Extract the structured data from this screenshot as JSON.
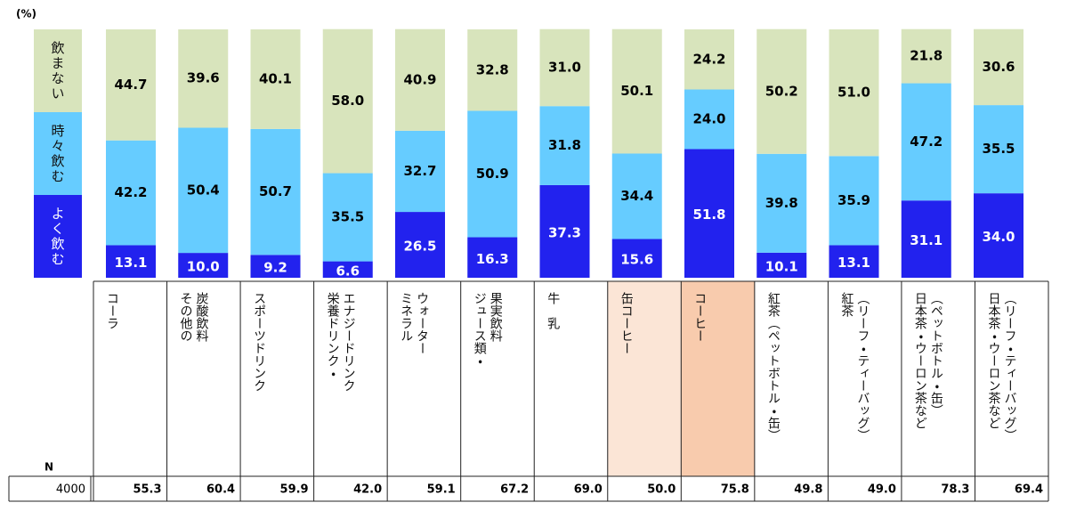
{
  "chart_data": {
    "type": "stacked_bar",
    "unit_label": "(%)",
    "ylim": [
      0,
      100
    ],
    "categories": [
      "コーラ",
      "その他の\n炭酸飲料",
      "スポーツドリンク",
      "栄養ドリンク・\nエナジードリンク",
      "ミネラル\nウォーター",
      "ジュース類・\n果実飲料",
      "牛　乳",
      "缶コーヒー",
      "コーヒー",
      "紅茶（ペットボトル・缶）",
      "紅茶\n（リーフ・ティーバッグ）",
      "日本茶・ウーロン茶など\n（ペットボトル・缶）",
      "日本茶・ウーロン茶など\n（リーフ・ティーバッグ）"
    ],
    "series": [
      {
        "name": "よく飲む",
        "color": "#2222ee",
        "label_color": "#ffffff",
        "values": [
          13.1,
          10.0,
          9.2,
          6.6,
          26.5,
          16.3,
          37.3,
          15.6,
          51.8,
          10.1,
          13.1,
          31.1,
          34.0
        ],
        "value_labels": [
          "13.1",
          "10.0",
          "9.2",
          "6.6",
          "26.5",
          "16.3",
          "37.3",
          "15.6",
          "51.8",
          "10.1",
          "13.1",
          "31.1",
          "34.0"
        ]
      },
      {
        "name": "時々飲む",
        "color": "#66ccff",
        "label_color": "#000000",
        "values": [
          42.2,
          50.4,
          50.7,
          35.5,
          32.7,
          50.9,
          31.8,
          34.4,
          24.0,
          39.8,
          35.9,
          47.2,
          35.5
        ],
        "value_labels": [
          "42.2",
          "50.4",
          "50.7",
          "35.5",
          "32.7",
          "50.9",
          "31.8",
          "34.4",
          "24.0",
          "39.8",
          "35.9",
          "47.2",
          "35.5"
        ]
      },
      {
        "name": "飲まない",
        "color": "#d8e4bc",
        "label_color": "#000000",
        "values": [
          44.7,
          39.6,
          40.1,
          58.0,
          40.9,
          32.8,
          31.0,
          50.1,
          24.2,
          50.2,
          51.0,
          21.8,
          30.6
        ],
        "value_labels": [
          "44.7",
          "39.6",
          "40.1",
          "58.0",
          "40.9",
          "32.8",
          "31.0",
          "50.1",
          "24.2",
          "50.2",
          "51.0",
          "21.8",
          "30.6"
        ]
      }
    ],
    "highlight": [
      {
        "index": 7,
        "color": "#fbe5d6"
      },
      {
        "index": 8,
        "color": "#f8cbad"
      }
    ],
    "n_row": {
      "label": "N",
      "total": "4000",
      "values": [
        "55.3",
        "60.4",
        "59.9",
        "42.0",
        "59.1",
        "67.2",
        "69.0",
        "50.0",
        "75.8",
        "49.8",
        "49.0",
        "78.3",
        "69.4"
      ]
    }
  }
}
